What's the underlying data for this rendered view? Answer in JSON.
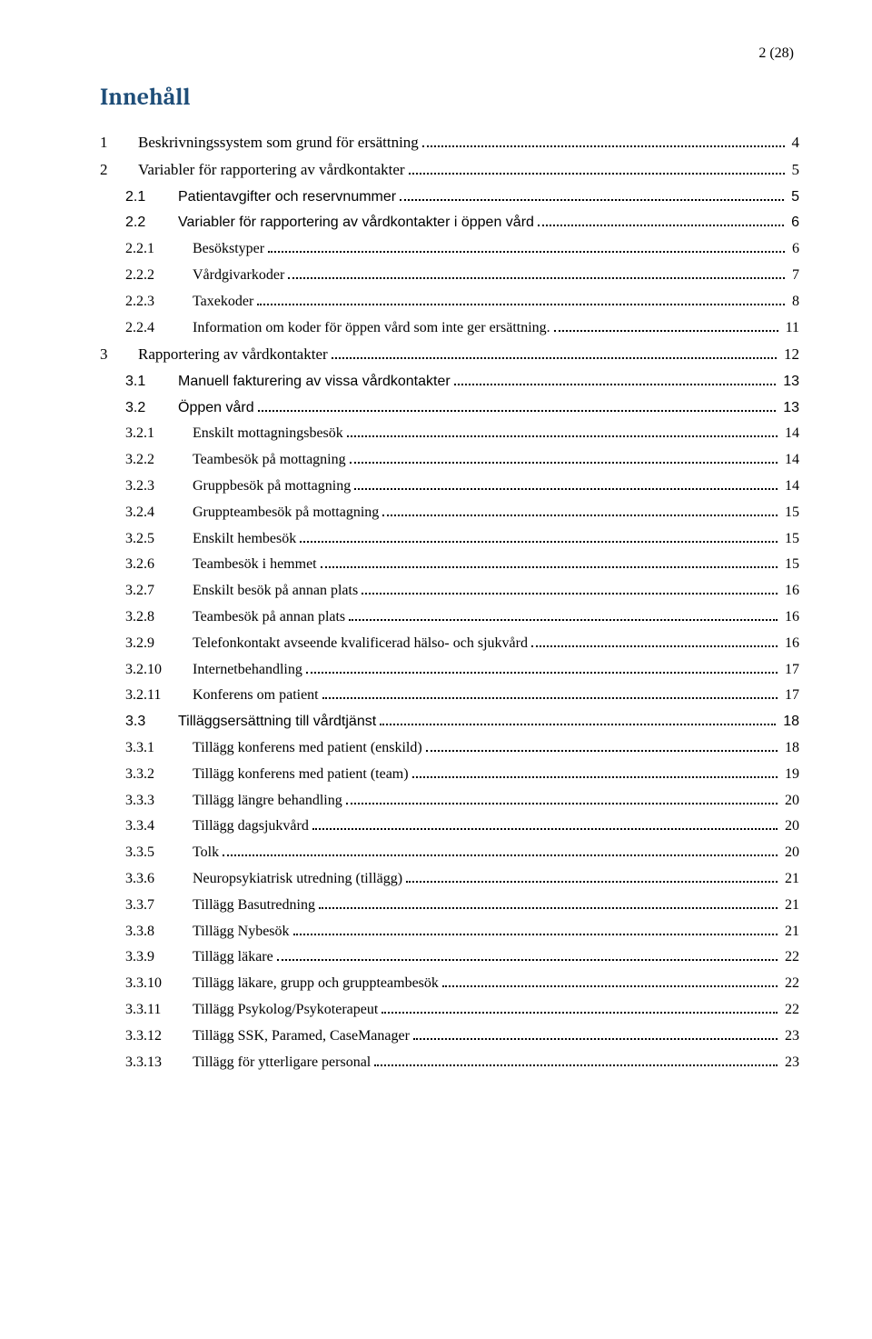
{
  "page_indicator": "2 (28)",
  "heading": "Innehåll",
  "entries": [
    {
      "level": 0,
      "num": "1",
      "label": "Beskrivningssystem som grund för ersättning",
      "page": "4"
    },
    {
      "level": 0,
      "num": "2",
      "label": "Variabler för rapportering av vårdkontakter",
      "page": "5"
    },
    {
      "level": 1,
      "num": "2.1",
      "label": "Patientavgifter och reservnummer",
      "page": "5"
    },
    {
      "level": 1,
      "num": "2.2",
      "label": "Variabler för rapportering av vårdkontakter i öppen vård",
      "page": "6"
    },
    {
      "level": 2,
      "num": "2.2.1",
      "label": "Besökstyper",
      "page": "6"
    },
    {
      "level": 2,
      "num": "2.2.2",
      "label": "Vårdgivarkoder",
      "page": "7"
    },
    {
      "level": 2,
      "num": "2.2.3",
      "label": "Taxekoder",
      "page": "8"
    },
    {
      "level": 2,
      "num": "2.2.4",
      "label": "Information om koder för öppen vård  som inte ger ersättning.",
      "page": "11"
    },
    {
      "level": 0,
      "num": "3",
      "label": "Rapportering av vårdkontakter",
      "page": "12"
    },
    {
      "level": 1,
      "num": "3.1",
      "label": "Manuell fakturering av vissa vårdkontakter",
      "page": "13"
    },
    {
      "level": 1,
      "num": "3.2",
      "label": "Öppen vård",
      "page": "13"
    },
    {
      "level": 2,
      "num": "3.2.1",
      "label": "Enskilt mottagningsbesök",
      "page": "14"
    },
    {
      "level": 2,
      "num": "3.2.2",
      "label": "Teambesök på mottagning",
      "page": "14"
    },
    {
      "level": 2,
      "num": "3.2.3",
      "label": "Gruppbesök på mottagning",
      "page": "14"
    },
    {
      "level": 2,
      "num": "3.2.4",
      "label": "Gruppteambesök på mottagning",
      "page": "15"
    },
    {
      "level": 2,
      "num": "3.2.5",
      "label": "Enskilt hembesök",
      "page": "15"
    },
    {
      "level": 2,
      "num": "3.2.6",
      "label": "Teambesök i hemmet",
      "page": "15"
    },
    {
      "level": 2,
      "num": "3.2.7",
      "label": "Enskilt besök på annan plats",
      "page": "16"
    },
    {
      "level": 2,
      "num": "3.2.8",
      "label": "Teambesök på annan plats",
      "page": "16"
    },
    {
      "level": 2,
      "num": "3.2.9",
      "label": "Telefonkontakt avseende kvalificerad hälso- och sjukvård",
      "page": "16"
    },
    {
      "level": 2,
      "num": "3.2.10",
      "label": "Internetbehandling",
      "page": "17"
    },
    {
      "level": 2,
      "num": "3.2.11",
      "label": "Konferens om patient",
      "page": "17"
    },
    {
      "level": 1,
      "num": "3.3",
      "label": "Tilläggsersättning till vårdtjänst",
      "page": "18"
    },
    {
      "level": 2,
      "num": "3.3.1",
      "label": "Tillägg konferens med patient (enskild)",
      "page": "18"
    },
    {
      "level": 2,
      "num": "3.3.2",
      "label": "Tillägg konferens med patient (team)",
      "page": "19"
    },
    {
      "level": 2,
      "num": "3.3.3",
      "label": "Tillägg längre behandling",
      "page": "20"
    },
    {
      "level": 2,
      "num": "3.3.4",
      "label": "Tillägg dagsjukvård",
      "page": "20"
    },
    {
      "level": 2,
      "num": "3.3.5",
      "label": "Tolk",
      "page": "20"
    },
    {
      "level": 2,
      "num": "3.3.6",
      "label": "Neuropsykiatrisk utredning (tillägg)",
      "page": "21"
    },
    {
      "level": 2,
      "num": "3.3.7",
      "label": "Tillägg Basutredning",
      "page": "21"
    },
    {
      "level": 2,
      "num": "3.3.8",
      "label": "Tillägg Nybesök",
      "page": "21"
    },
    {
      "level": 2,
      "num": "3.3.9",
      "label": "Tillägg läkare",
      "page": "22"
    },
    {
      "level": 2,
      "num": "3.3.10",
      "label": "Tillägg läkare, grupp och gruppteambesök",
      "page": "22"
    },
    {
      "level": 2,
      "num": "3.3.11",
      "label": "Tillägg Psykolog/Psykoterapeut",
      "page": "22"
    },
    {
      "level": 2,
      "num": "3.3.12",
      "label": "Tillägg SSK, Paramed, CaseManager",
      "page": "23"
    },
    {
      "level": 2,
      "num": "3.3.13",
      "label": "Tillägg för ytterligare personal",
      "page": "23"
    }
  ]
}
